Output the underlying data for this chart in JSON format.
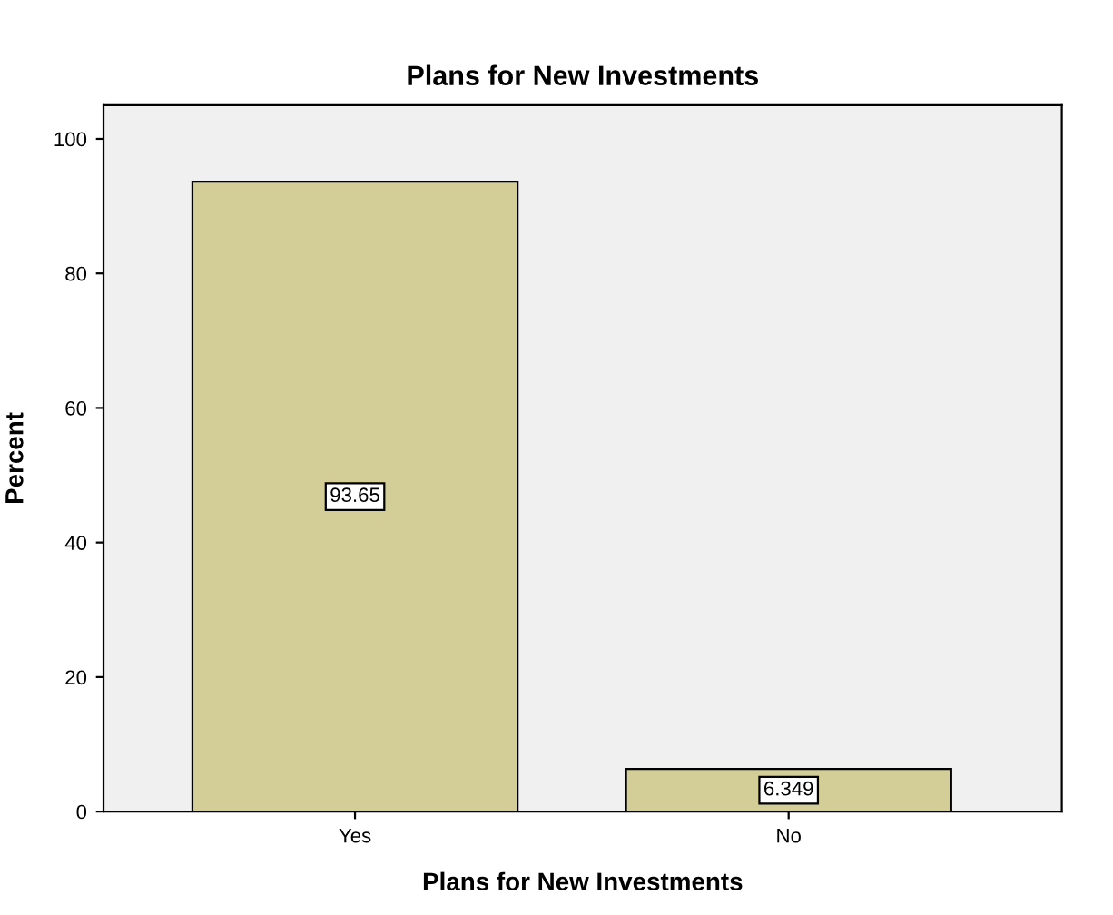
{
  "chart_data": {
    "type": "bar",
    "title": "Plans for New Investments",
    "xlabel": "Plans for New Investments",
    "ylabel": "Percent",
    "categories": [
      "Yes",
      "No"
    ],
    "values": [
      93.65,
      6.349
    ],
    "color": "#d3ce97",
    "ylim": [
      0,
      105
    ],
    "yticks": [
      0,
      20,
      40,
      60,
      80,
      100
    ],
    "grid": false,
    "data_labels": true
  }
}
